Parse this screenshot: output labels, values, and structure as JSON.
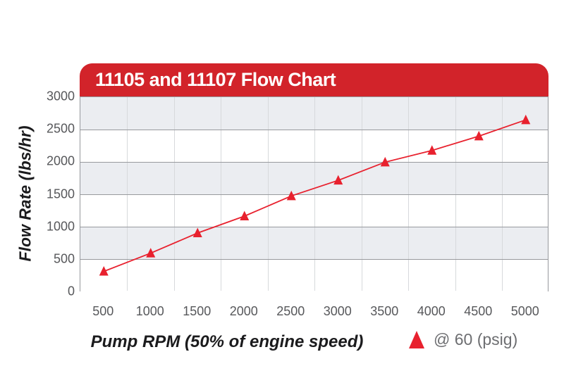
{
  "header": {
    "title": "11105 and 11107 Flow Chart"
  },
  "chart_data": {
    "type": "line",
    "title": "11105 and 11107 Flow Chart",
    "xlabel": "Pump RPM (50% of engine speed)",
    "ylabel": "Flow Rate (lbs/hr)",
    "categories": [
      500,
      1000,
      1500,
      2000,
      2500,
      3000,
      3500,
      4000,
      4500,
      5000
    ],
    "series": [
      {
        "name": "@ 60 (psig)",
        "marker": "triangle-up",
        "color": "#e8212e",
        "values": [
          320,
          600,
          910,
          1170,
          1480,
          1720,
          2000,
          2180,
          2400,
          2650
        ]
      }
    ],
    "ylim": [
      0,
      3000
    ],
    "yticks": [
      0,
      500,
      1000,
      1500,
      2000,
      2500,
      3000
    ],
    "grid": {
      "horizontal": true,
      "vertical": true,
      "alternating_bands": true
    },
    "legend": {
      "position": "bottom-right",
      "label": "@ 60 (psig)"
    }
  },
  "colors": {
    "banner_bg": "#d2232a",
    "banner_text": "#ffffff",
    "line": "#e8212e",
    "marker": "#e8212e",
    "band_gray": "#ebedf1",
    "band_white": "#ffffff",
    "h_gridline": "#97999d",
    "v_gridline": "#d7d9dc",
    "tick_label": "#57585b",
    "axis_title": "#1b1b1d",
    "legend_text": "#6d6e71"
  }
}
